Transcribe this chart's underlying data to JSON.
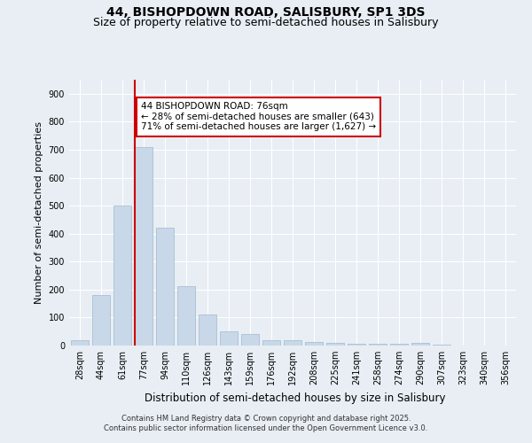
{
  "title1": "44, BISHOPDOWN ROAD, SALISBURY, SP1 3DS",
  "title2": "Size of property relative to semi-detached houses in Salisbury",
  "xlabel": "Distribution of semi-detached houses by size in Salisbury",
  "ylabel": "Number of semi-detached properties",
  "categories": [
    "28sqm",
    "44sqm",
    "61sqm",
    "77sqm",
    "94sqm",
    "110sqm",
    "126sqm",
    "143sqm",
    "159sqm",
    "176sqm",
    "192sqm",
    "208sqm",
    "225sqm",
    "241sqm",
    "258sqm",
    "274sqm",
    "290sqm",
    "307sqm",
    "323sqm",
    "340sqm",
    "356sqm"
  ],
  "values": [
    18,
    180,
    500,
    710,
    420,
    213,
    110,
    52,
    40,
    18,
    18,
    14,
    10,
    7,
    6,
    5,
    8,
    4,
    0,
    0,
    0
  ],
  "bar_color": "#c8d8e8",
  "bar_edge_color": "#a0b8d0",
  "vline_x_index": 2.575,
  "vline_color": "#cc0000",
  "annotation_text": "44 BISHOPDOWN ROAD: 76sqm\n← 28% of semi-detached houses are smaller (643)\n71% of semi-detached houses are larger (1,627) →",
  "annotation_box_color": "#ffffff",
  "annotation_box_edge": "#cc0000",
  "ylim": [
    0,
    950
  ],
  "yticks": [
    0,
    100,
    200,
    300,
    400,
    500,
    600,
    700,
    800,
    900
  ],
  "bg_color": "#e8eef4",
  "plot_bg_color": "#e8eef4",
  "grid_color": "#ffffff",
  "footer": "Contains HM Land Registry data © Crown copyright and database right 2025.\nContains public sector information licensed under the Open Government Licence v3.0.",
  "title1_fontsize": 10,
  "title2_fontsize": 9,
  "xlabel_fontsize": 8.5,
  "ylabel_fontsize": 8,
  "tick_fontsize": 7,
  "annotation_fontsize": 7.5,
  "footer_fontsize": 6
}
